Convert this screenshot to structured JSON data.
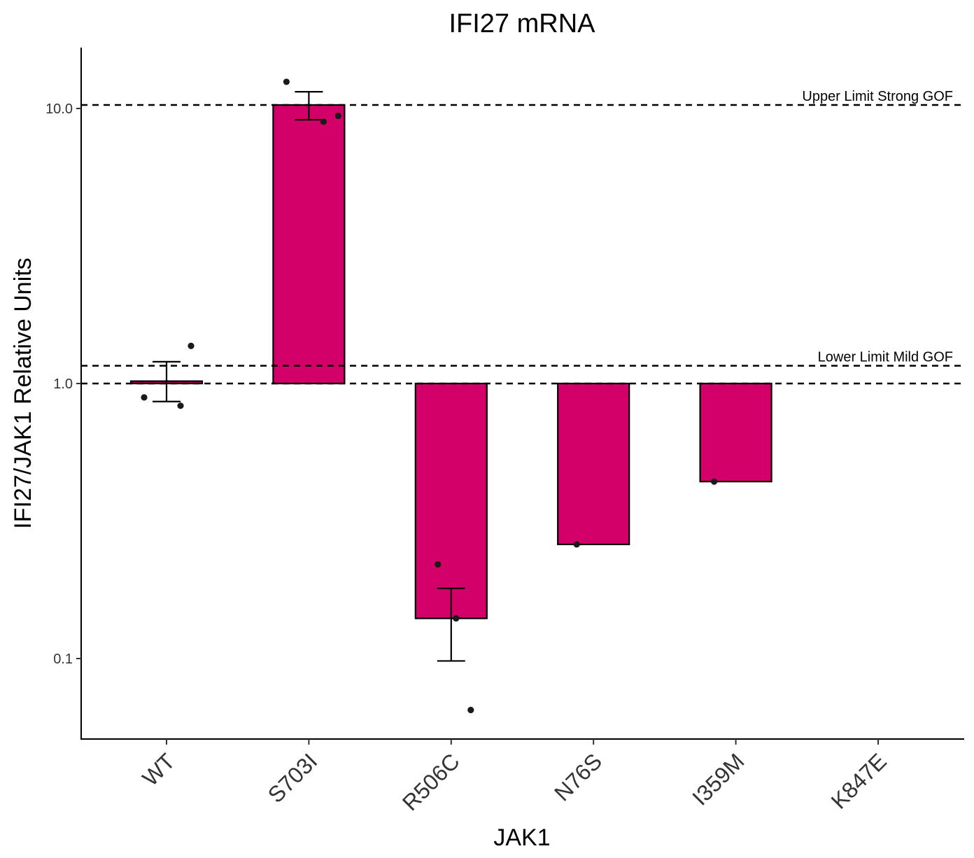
{
  "chart_data": {
    "type": "bar",
    "title": "IFI27 mRNA",
    "xlabel": "JAK1",
    "ylabel": "IFI27/JAK1 Relative Units",
    "y_scale": "log10",
    "baseline": 1.0,
    "ylim": [
      0.05,
      17
    ],
    "yticks": [
      0.1,
      1.0,
      10.0
    ],
    "ytick_labels": [
      "0.1",
      "1.0",
      "10.0"
    ],
    "grid": false,
    "legend": "none",
    "bar_color": "#d4006a",
    "categories": [
      "WT",
      "S703I",
      "R506C",
      "N76S",
      "I359M",
      "K847E"
    ],
    "values": [
      1.02,
      10.3,
      0.14,
      0.26,
      0.44,
      null
    ],
    "error_bars": [
      {
        "category": "WT",
        "low": 0.86,
        "high": 1.2
      },
      {
        "category": "S703I",
        "low": 9.1,
        "high": 11.5
      },
      {
        "category": "R506C",
        "low": 0.098,
        "high": 0.18
      }
    ],
    "points": [
      {
        "category": "WT",
        "values": [
          1.37,
          0.89,
          0.83
        ]
      },
      {
        "category": "S703I",
        "values": [
          12.5,
          8.95,
          9.4
        ]
      },
      {
        "category": "R506C",
        "values": [
          0.22,
          0.14,
          0.065
        ]
      },
      {
        "category": "N76S",
        "values": [
          0.26
        ]
      },
      {
        "category": "I359M",
        "values": [
          0.44
        ]
      },
      {
        "category": "K847E",
        "values": []
      }
    ],
    "reference_lines": [
      {
        "y": 10.3,
        "label": "Upper Limit Strong GOF"
      },
      {
        "y": 1.16,
        "label": "Lower Limit Mild GOF"
      },
      {
        "y": 1.0,
        "label": ""
      }
    ]
  }
}
